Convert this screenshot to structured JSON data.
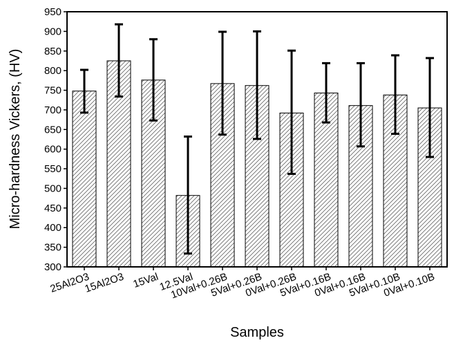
{
  "chart_data": {
    "type": "bar",
    "title": "",
    "xlabel": "Samples",
    "ylabel": "Micro-hardness Vickers, (HV)",
    "ylim": [
      300,
      950
    ],
    "yticks": [
      300,
      350,
      400,
      450,
      500,
      550,
      600,
      650,
      700,
      750,
      800,
      850,
      900,
      950
    ],
    "categories": [
      "25Al2O3",
      "15Al2O3",
      "15Val",
      "12.5Val",
      "10Val+0.26B",
      "5Val+0.26B",
      "0Val+0.26B",
      "5Val+0.16B",
      "0Val+0.16B",
      "5Val+0.10B",
      "0Val+0.10B"
    ],
    "values": [
      748,
      825,
      776,
      482,
      767,
      762,
      692,
      743,
      711,
      738,
      705
    ],
    "error_upper": [
      802,
      918,
      880,
      632,
      899,
      900,
      851,
      819,
      819,
      839,
      832
    ],
    "error_lower": [
      693,
      734,
      673,
      334,
      637,
      626,
      537,
      668,
      607,
      639,
      580
    ],
    "grid": false,
    "bar_fill": "hatched",
    "colors": {
      "axis": "#000000",
      "bar_edge": "#000000",
      "hatch": "#555555",
      "error_bar": "#000000"
    }
  }
}
